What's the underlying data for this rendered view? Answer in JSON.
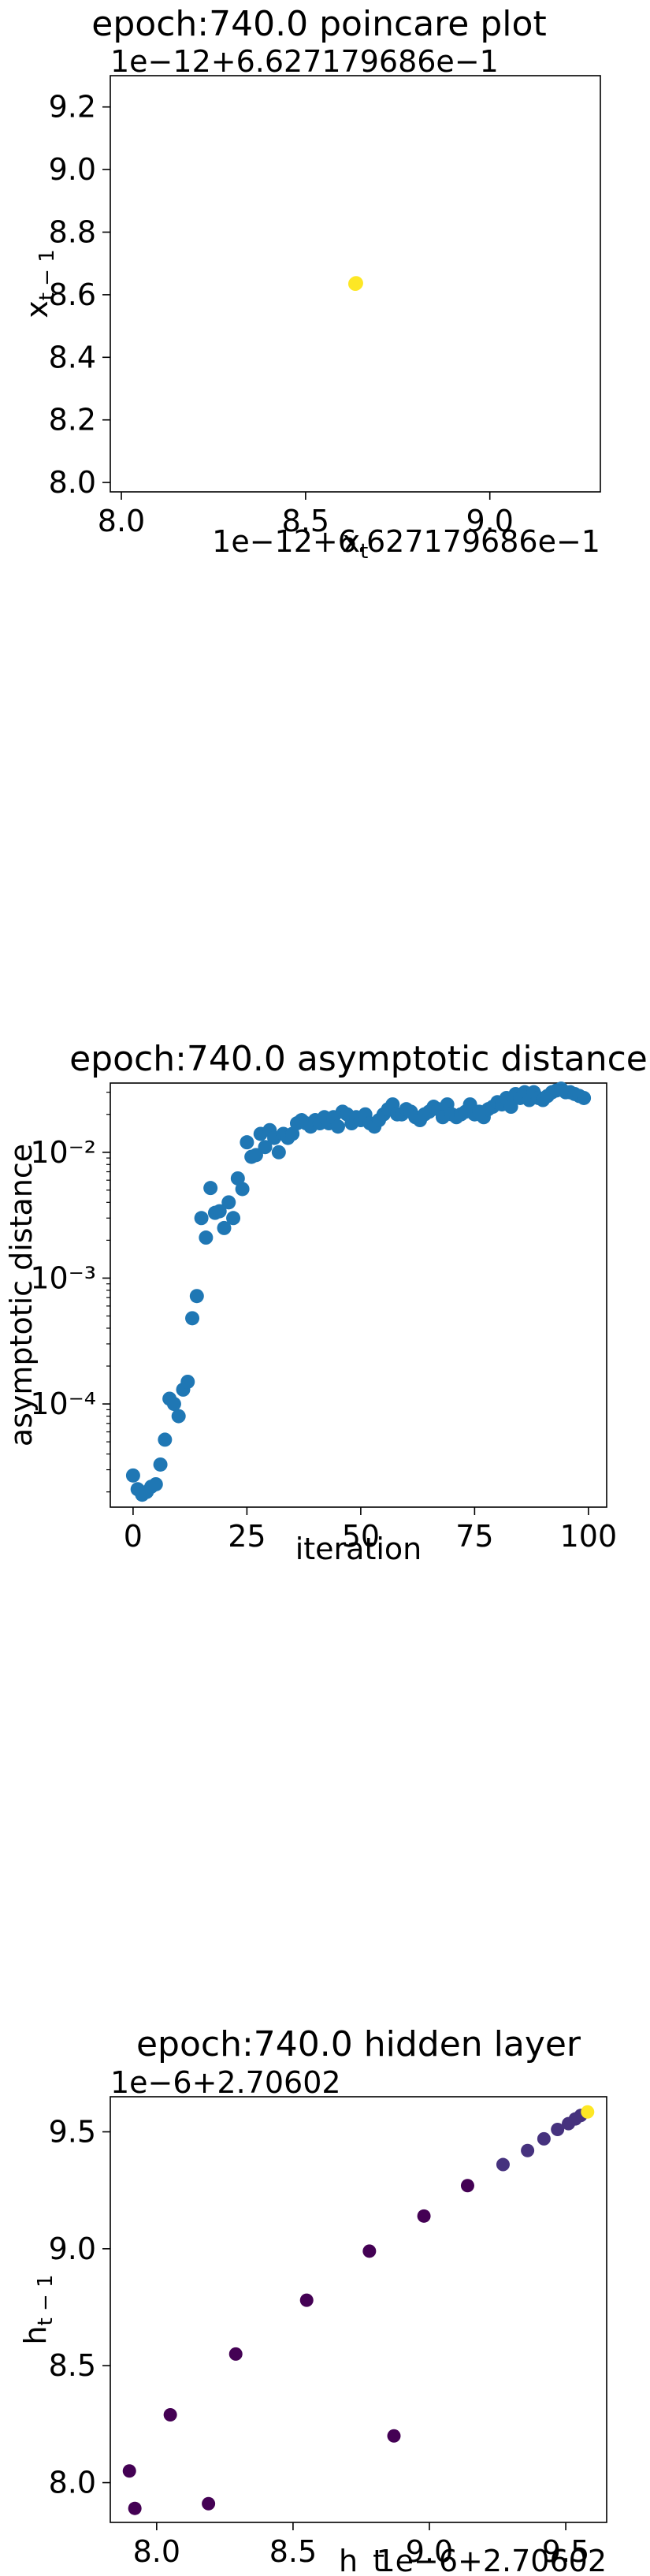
{
  "chart_data": [
    {
      "type": "scatter",
      "title": "epoch:740.0 poincare plot",
      "xlabel": "x_t",
      "ylabel": "x_{t-1}",
      "x_offset_text": "1e−12+6.627179686e−1",
      "y_offset_text": "1e−12+6.627179686e−1",
      "xlim": [
        7.97,
        9.3
      ],
      "ylim": [
        7.97,
        9.3
      ],
      "xticks": [
        8.0,
        8.5,
        9.0
      ],
      "xtick_labels": [
        "8.0",
        "8.5",
        "9.0"
      ],
      "yticks": [
        8.0,
        8.2,
        8.4,
        8.6,
        8.8,
        9.0,
        9.2
      ],
      "ytick_labels": [
        "8.0",
        "8.2",
        "8.4",
        "8.6",
        "8.8",
        "9.0",
        "9.2"
      ],
      "grid": false,
      "point_colors": [
        "#fde725",
        "#fde725"
      ],
      "points": [
        {
          "x": 8.635,
          "y": 8.635
        },
        {
          "x": 8.637,
          "y": 8.637
        }
      ]
    },
    {
      "type": "scatter",
      "title": "epoch:740.0 asymptotic distance",
      "xlabel": "iteration",
      "ylabel": "asymptotic distance",
      "yscale": "log",
      "xlim": [
        -5,
        104
      ],
      "ylim_log10": [
        -4.82,
        -1.45
      ],
      "xticks": [
        0,
        25,
        50,
        75,
        100
      ],
      "xtick_labels": [
        "0",
        "25",
        "50",
        "75",
        "100"
      ],
      "yticks_log10": [
        -4,
        -3,
        -2
      ],
      "ytick_labels": [
        "10⁻⁴",
        "10⁻³",
        "10⁻²"
      ],
      "grid": false,
      "color": "#1f77b4",
      "x": [
        0,
        1,
        2,
        3,
        4,
        5,
        6,
        7,
        8,
        9,
        10,
        11,
        12,
        13,
        14,
        15,
        16,
        17,
        18,
        19,
        20,
        21,
        22,
        23,
        24,
        25,
        26,
        27,
        28,
        29,
        30,
        31,
        32,
        33,
        34,
        35,
        36,
        37,
        38,
        39,
        40,
        41,
        42,
        43,
        44,
        45,
        46,
        47,
        48,
        49,
        50,
        51,
        52,
        53,
        54,
        55,
        56,
        57,
        58,
        59,
        60,
        61,
        62,
        63,
        64,
        65,
        66,
        67,
        68,
        69,
        70,
        71,
        72,
        73,
        74,
        75,
        76,
        77,
        78,
        79,
        80,
        81,
        82,
        83,
        84,
        85,
        86,
        87,
        88,
        89,
        90,
        91,
        92,
        93,
        94,
        95,
        96,
        97,
        98,
        99
      ],
      "y": [
        2.7e-05,
        2.1e-05,
        1.9e-05,
        2e-05,
        2.2e-05,
        2.3e-05,
        3.3e-05,
        5.2e-05,
        0.00011,
        0.0001,
        8e-05,
        0.00013,
        0.00015,
        0.00048,
        0.00072,
        0.003,
        0.0021,
        0.0052,
        0.0033,
        0.0034,
        0.0025,
        0.004,
        0.003,
        0.0062,
        0.0051,
        0.012,
        0.0092,
        0.0095,
        0.014,
        0.011,
        0.015,
        0.013,
        0.01,
        0.014,
        0.013,
        0.014,
        0.017,
        0.018,
        0.017,
        0.016,
        0.018,
        0.017,
        0.019,
        0.017,
        0.019,
        0.016,
        0.021,
        0.02,
        0.017,
        0.019,
        0.018,
        0.02,
        0.017,
        0.016,
        0.018,
        0.02,
        0.022,
        0.024,
        0.02,
        0.02,
        0.022,
        0.021,
        0.019,
        0.018,
        0.02,
        0.021,
        0.023,
        0.022,
        0.019,
        0.024,
        0.02,
        0.019,
        0.02,
        0.021,
        0.024,
        0.02,
        0.021,
        0.019,
        0.022,
        0.023,
        0.025,
        0.024,
        0.027,
        0.023,
        0.029,
        0.027,
        0.03,
        0.026,
        0.03,
        0.027,
        0.026,
        0.028,
        0.03,
        0.031,
        0.032,
        0.03,
        0.03,
        0.029,
        0.028,
        0.027
      ]
    },
    {
      "type": "scatter",
      "title": "epoch:740.0 hidden layer",
      "xlabel": "h_t",
      "ylabel": "h_{t-1}",
      "x_offset_text": "1e−6+2.70602",
      "y_offset_text": "1e−6+2.70602",
      "xlim": [
        7.83,
        9.65
      ],
      "ylim": [
        7.83,
        9.65
      ],
      "xticks": [
        8.0,
        8.5,
        9.0,
        9.5
      ],
      "xtick_labels": [
        "8.0",
        "8.5",
        "9.0",
        "9.5"
      ],
      "yticks": [
        8.0,
        8.5,
        9.0,
        9.5
      ],
      "ytick_labels": [
        "8.0",
        "8.5",
        "9.0",
        "9.5"
      ],
      "grid": false,
      "points": [
        {
          "x": 7.9,
          "y": 8.05,
          "c": "#440154"
        },
        {
          "x": 7.92,
          "y": 7.89,
          "c": "#440154"
        },
        {
          "x": 8.05,
          "y": 8.29,
          "c": "#440154"
        },
        {
          "x": 8.19,
          "y": 7.91,
          "c": "#440154"
        },
        {
          "x": 8.29,
          "y": 8.55,
          "c": "#440154"
        },
        {
          "x": 8.55,
          "y": 8.78,
          "c": "#440154"
        },
        {
          "x": 8.78,
          "y": 8.99,
          "c": "#440154"
        },
        {
          "x": 8.87,
          "y": 8.2,
          "c": "#440154"
        },
        {
          "x": 8.98,
          "y": 9.14,
          "c": "#440154"
        },
        {
          "x": 9.14,
          "y": 9.27,
          "c": "#440154"
        },
        {
          "x": 9.27,
          "y": 9.36,
          "c": "#46327e"
        },
        {
          "x": 9.36,
          "y": 9.42,
          "c": "#46327e"
        },
        {
          "x": 9.42,
          "y": 9.47,
          "c": "#46327e"
        },
        {
          "x": 9.47,
          "y": 9.51,
          "c": "#46327e"
        },
        {
          "x": 9.51,
          "y": 9.535,
          "c": "#46327e"
        },
        {
          "x": 9.535,
          "y": 9.555,
          "c": "#46327e"
        },
        {
          "x": 9.555,
          "y": 9.57,
          "c": "#46327e"
        },
        {
          "x": 9.58,
          "y": 9.585,
          "c": "#fde725"
        }
      ]
    }
  ]
}
